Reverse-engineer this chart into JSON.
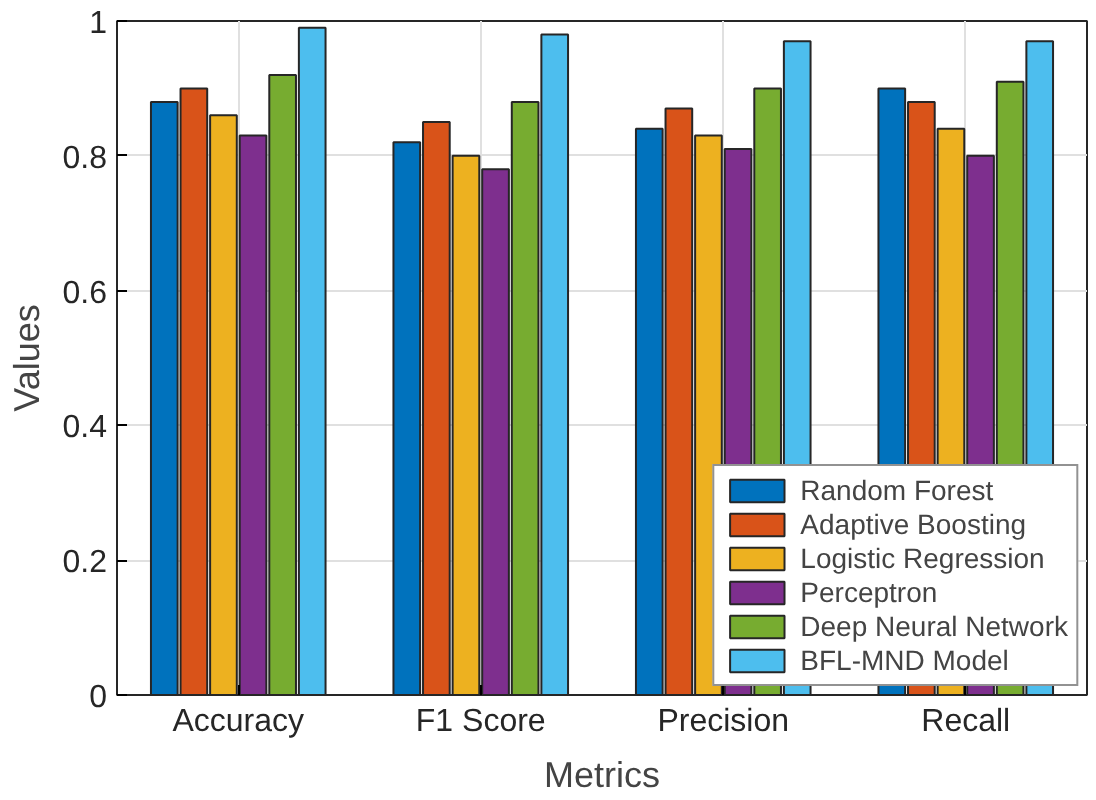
{
  "chart_data": {
    "type": "bar",
    "xlabel": "Metrics",
    "ylabel": "Values",
    "categories": [
      "Accuracy",
      "F1 Score",
      "Precision",
      "Recall"
    ],
    "series": [
      {
        "name": "Random Forest",
        "color": "#0072bd",
        "values": [
          0.88,
          0.82,
          0.84,
          0.9
        ]
      },
      {
        "name": "Adaptive Boosting",
        "color": "#d95319",
        "values": [
          0.9,
          0.85,
          0.87,
          0.88
        ]
      },
      {
        "name": "Logistic Regression",
        "color": "#edb120",
        "values": [
          0.86,
          0.8,
          0.83,
          0.84
        ]
      },
      {
        "name": "Perceptron",
        "color": "#7e2f8e",
        "values": [
          0.83,
          0.78,
          0.81,
          0.8
        ]
      },
      {
        "name": "Deep Neural Network",
        "color": "#77ac30",
        "values": [
          0.92,
          0.88,
          0.9,
          0.91
        ]
      },
      {
        "name": "BFL-MND Model",
        "color": "#4dbeee",
        "values": [
          0.99,
          0.98,
          0.97,
          0.97
        ]
      }
    ],
    "ylim": [
      0,
      1
    ],
    "yticks": [
      0,
      0.2,
      0.4,
      0.6,
      0.8,
      1
    ],
    "grid": true,
    "legend": "bottom right"
  }
}
